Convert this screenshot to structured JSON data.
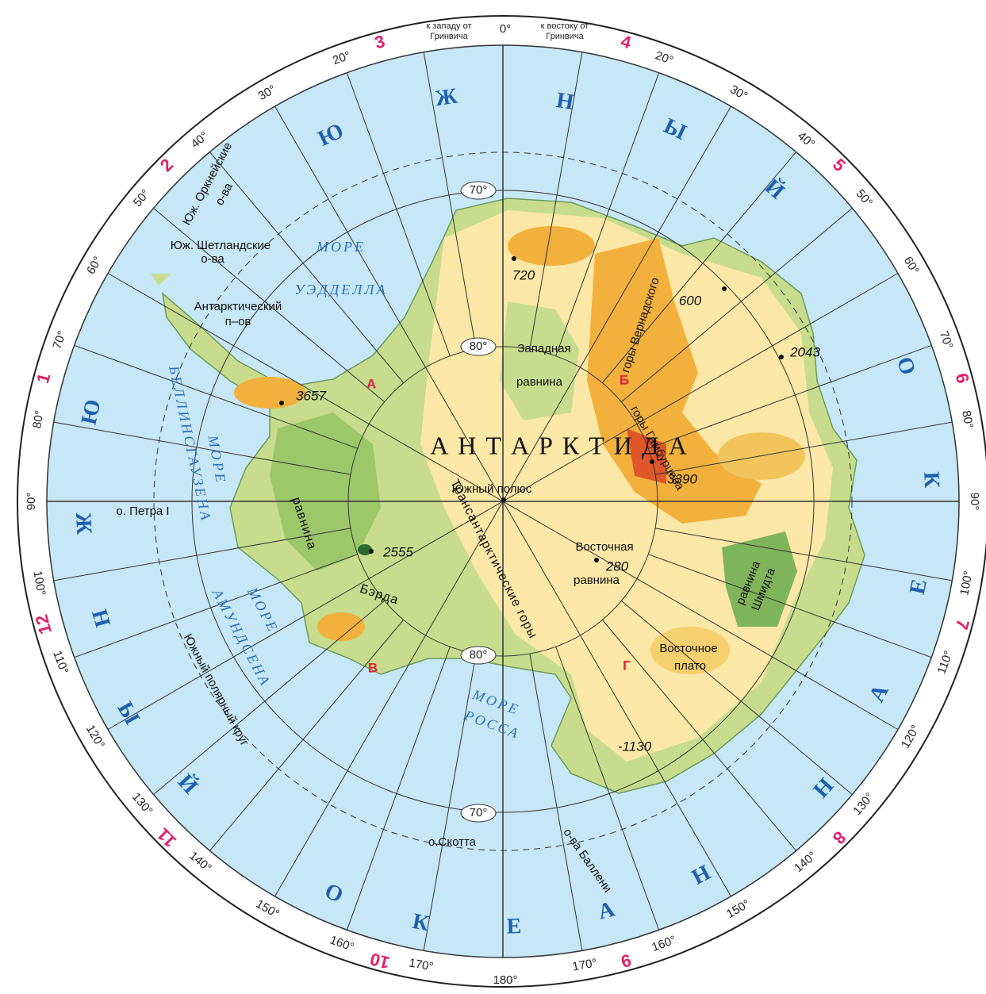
{
  "graticule": {
    "prime": "0°",
    "antimeridian": "180°",
    "west_note": [
      "к западу от",
      "Гринвича"
    ],
    "east_note": [
      "к востоку от",
      "Гринвича"
    ],
    "east_labels": [
      "20°",
      "30°",
      "40°",
      "50°",
      "60°",
      "70°",
      "80°",
      "90°",
      "100°",
      "110°",
      "120°",
      "130°",
      "140°",
      "150°",
      "160°",
      "170°"
    ],
    "west_labels": [
      "20°",
      "30°",
      "40°",
      "50°",
      "60°",
      "70°",
      "80°",
      "90°",
      "100°",
      "110°",
      "120°",
      "130°",
      "140°",
      "150°",
      "160°",
      "170°"
    ],
    "parallel_labels": [
      "70°",
      "80°",
      "80°",
      "70°"
    ]
  },
  "sheet_numbers": [
    "1",
    "2",
    "3",
    "4",
    "5",
    "6",
    "7",
    "8",
    "9",
    "10",
    "11",
    "12"
  ],
  "ocean_letters": [
    "Ю",
    "Ж",
    "Н",
    "Ы",
    "Й",
    "О",
    "К",
    "Е",
    "А",
    "Н",
    "Ю",
    "Ж",
    "Н",
    "Ы",
    "Й",
    "О",
    "К",
    "Е",
    "А",
    "Н"
  ],
  "labels": [
    "Юж. Оркнейские",
    "о-ва",
    "Юж. Шетландские",
    "о-ва",
    "Антарктический",
    "п–ов",
    "МОРЕ",
    "УЭДДЕЛЛА",
    "720",
    "600",
    "2043",
    "Западная",
    "равнина",
    "А",
    "Б",
    "3657",
    "горы Вернадского",
    "горы Гамбурцева",
    "А Н Т А Р К Т И Д А",
    "Трансантарктические горы",
    "Южный полюс",
    "3390",
    "МОРЕ",
    "БЕЛЛИНСГАУЗЕНА",
    "о. Петра I",
    "равнина",
    "Бэрда",
    "2555",
    "Восточная",
    "280",
    "равнина",
    "равнина",
    "Шмидта",
    "МОРЕ",
    "АМУНДСЕНА",
    "Южный полярный круг",
    "В",
    "Г",
    "Восточное",
    "плато",
    "МОРЕ",
    "РОССА",
    "-1130",
    "о.Скотта",
    "о-ва Баллени"
  ]
}
